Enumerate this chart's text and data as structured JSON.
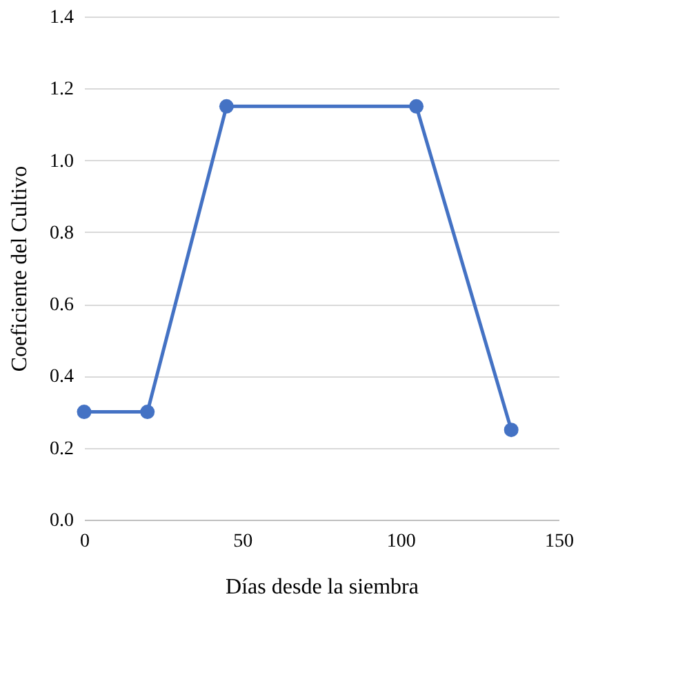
{
  "chart_data": {
    "type": "line",
    "xlabel": "Días desde la  siembra",
    "ylabel": "Coeficiente del Cultivo",
    "x": [
      0,
      20,
      45,
      105,
      135
    ],
    "series": [
      {
        "color": "#4472c4",
        "values": [
          0.3,
          0.3,
          1.15,
          1.15,
          0.25
        ]
      }
    ],
    "xlim": [
      0,
      150
    ],
    "xticks": [
      0,
      50,
      100,
      150
    ],
    "ylim": [
      0,
      1.4
    ],
    "yticks": [
      {
        "value": 0,
        "label": "0.0"
      },
      {
        "value": 0.2,
        "label": "0.2"
      },
      {
        "value": 0.4,
        "label": "0.4"
      },
      {
        "value": 0.6,
        "label": "0.6"
      },
      {
        "value": 0.8,
        "label": "0.8"
      },
      {
        "value": 1.0,
        "label": "1.0"
      },
      {
        "value": 1.2,
        "label": "1.2"
      },
      {
        "value": 1.4,
        "label": "1.4"
      }
    ],
    "grid": "y",
    "marker": "circle",
    "line_style": "solid"
  }
}
